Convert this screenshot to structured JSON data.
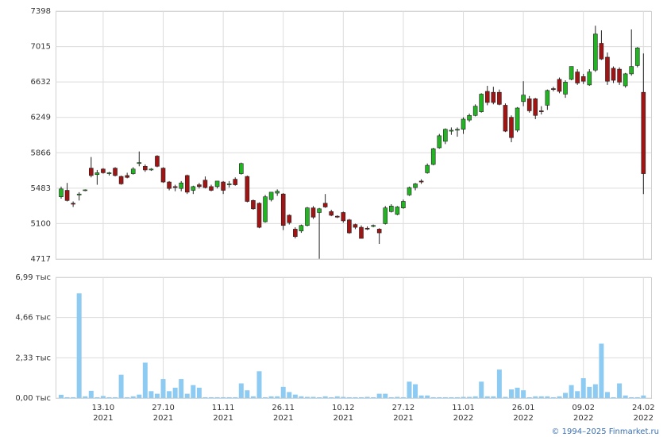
{
  "chart_data": [
    {
      "type": "candlestick",
      "up_color": "#22b422",
      "down_color": "#a01414",
      "open": [
        5390,
        5460,
        5320,
        5410,
        5460,
        5700,
        5630,
        5690,
        5640,
        5700,
        5610,
        5620,
        5640,
        5750,
        5720,
        5680,
        5830,
        5700,
        5550,
        5500,
        5480,
        5620,
        5460,
        5520,
        5570,
        5500,
        5500,
        5550,
        5520,
        5580,
        5640,
        5610,
        5350,
        5320,
        5120,
        5360,
        5430,
        5420,
        5190,
        5040,
        5020,
        5080,
        5270,
        5220,
        5320,
        5230,
        5180,
        5220,
        5140,
        5090,
        5060,
        5050,
        5070,
        5040,
        5100,
        5230,
        5200,
        5270,
        5410,
        5490,
        5560,
        5650,
        5740,
        5920,
        5990,
        6100,
        6110,
        6120,
        6220,
        6270,
        6310,
        6530,
        6520,
        6520,
        6380,
        6250,
        6110,
        6420,
        6450,
        6450,
        6320,
        6380,
        6560,
        6660,
        6500,
        6660,
        6740,
        6690,
        6600,
        6760,
        7050,
        6900,
        6780,
        6770,
        6590,
        6720,
        6810,
        6520
      ],
      "high": [
        5500,
        5540,
        5340,
        5440,
        5470,
        5820,
        5680,
        5700,
        5660,
        5710,
        5620,
        5650,
        5710,
        5880,
        5740,
        5700,
        5840,
        5710,
        5560,
        5520,
        5560,
        5630,
        5510,
        5540,
        5610,
        5520,
        5560,
        5560,
        5560,
        5600,
        5760,
        5620,
        5360,
        5330,
        5410,
        5440,
        5470,
        5430,
        5200,
        5060,
        5090,
        5280,
        5290,
        5270,
        5420,
        5250,
        5190,
        5230,
        5150,
        5100,
        5080,
        5070,
        5090,
        5050,
        5290,
        5310,
        5290,
        5360,
        5500,
        5540,
        5580,
        5750,
        5920,
        6070,
        6130,
        6140,
        6140,
        6250,
        6290,
        6390,
        6510,
        6590,
        6580,
        6550,
        6400,
        6270,
        6360,
        6640,
        6480,
        6460,
        6370,
        6550,
        6580,
        6680,
        6650,
        6800,
        6770,
        6720,
        6770,
        7240,
        7190,
        6950,
        6800,
        6790,
        6730,
        7200,
        7010,
        6940
      ],
      "low": [
        5370,
        5340,
        5280,
        5350,
        5450,
        5600,
        5520,
        5640,
        5620,
        5610,
        5520,
        5590,
        5630,
        5720,
        5660,
        5670,
        5710,
        5540,
        5460,
        5450,
        5450,
        5420,
        5420,
        5480,
        5480,
        5450,
        5480,
        5420,
        5490,
        5510,
        5630,
        5330,
        5250,
        5050,
        5110,
        5340,
        5400,
        5030,
        5090,
        4940,
        5000,
        5070,
        5150,
        4720,
        5270,
        5180,
        5160,
        5110,
        4990,
        5040,
        4940,
        5030,
        5060,
        4880,
        5090,
        5220,
        5190,
        5260,
        5400,
        5460,
        5530,
        5640,
        5730,
        5910,
        5960,
        6060,
        6040,
        6070,
        6200,
        6260,
        6300,
        6380,
        6390,
        6380,
        6090,
        5980,
        6090,
        6370,
        6300,
        6230,
        6280,
        6330,
        6530,
        6510,
        6460,
        6650,
        6600,
        6610,
        6590,
        6740,
        6870,
        6600,
        6620,
        6600,
        6570,
        6700,
        6790,
        5420
      ],
      "close": [
        5475,
        5350,
        5310,
        5420,
        5465,
        5620,
        5650,
        5650,
        5650,
        5620,
        5530,
        5600,
        5690,
        5760,
        5680,
        5690,
        5720,
        5550,
        5480,
        5490,
        5540,
        5440,
        5500,
        5500,
        5490,
        5460,
        5560,
        5460,
        5530,
        5520,
        5750,
        5340,
        5260,
        5060,
        5390,
        5440,
        5450,
        5080,
        5110,
        4960,
        5080,
        5270,
        5170,
        5260,
        5280,
        5190,
        5170,
        5130,
        5000,
        5060,
        4940,
        5040,
        5080,
        5000,
        5270,
        5290,
        5280,
        5340,
        5490,
        5530,
        5550,
        5730,
        5910,
        6050,
        6120,
        6110,
        6120,
        6230,
        6270,
        6370,
        6500,
        6410,
        6410,
        6390,
        6100,
        6030,
        6350,
        6490,
        6320,
        6270,
        6310,
        6540,
        6550,
        6530,
        6630,
        6800,
        6620,
        6640,
        6740,
        7150,
        6880,
        6640,
        6650,
        6630,
        6720,
        6800,
        7000,
        5640
      ],
      "ylim": [
        4717,
        7398
      ],
      "yticks": [
        4717,
        5100,
        5483,
        5866,
        6249,
        6632,
        7015,
        7398
      ],
      "grid": true
    },
    {
      "type": "bar",
      "color": "#8ecbf2",
      "categories": [
        null,
        null,
        null,
        null,
        null,
        null,
        null,
        "13.10",
        null,
        null,
        null,
        null,
        null,
        null,
        null,
        null,
        null,
        "27.10",
        null,
        null,
        null,
        null,
        null,
        null,
        null,
        null,
        null,
        "11.11",
        null,
        null,
        null,
        null,
        null,
        null,
        null,
        null,
        null,
        "26.11",
        null,
        null,
        null,
        null,
        null,
        null,
        null,
        null,
        null,
        "10.12",
        null,
        null,
        null,
        null,
        null,
        null,
        null,
        null,
        null,
        "27.12",
        null,
        null,
        null,
        null,
        null,
        null,
        null,
        null,
        null,
        "11.01",
        null,
        null,
        null,
        null,
        null,
        null,
        null,
        null,
        null,
        "26.01",
        null,
        null,
        null,
        null,
        null,
        null,
        null,
        null,
        null,
        "09.02",
        null,
        null,
        null,
        null,
        null,
        null,
        null,
        null,
        null,
        "24.02"
      ],
      "years": [
        null,
        null,
        null,
        null,
        null,
        null,
        null,
        "2021",
        null,
        null,
        null,
        null,
        null,
        null,
        null,
        null,
        null,
        "2021",
        null,
        null,
        null,
        null,
        null,
        null,
        null,
        null,
        null,
        "2021",
        null,
        null,
        null,
        null,
        null,
        null,
        null,
        null,
        null,
        "2021",
        null,
        null,
        null,
        null,
        null,
        null,
        null,
        null,
        null,
        "2021",
        null,
        null,
        null,
        null,
        null,
        null,
        null,
        null,
        null,
        "2021",
        null,
        null,
        null,
        null,
        null,
        null,
        null,
        null,
        null,
        "2022",
        null,
        null,
        null,
        null,
        null,
        null,
        null,
        null,
        null,
        "2022",
        null,
        null,
        null,
        null,
        null,
        null,
        null,
        null,
        null,
        "2022",
        null,
        null,
        null,
        null,
        null,
        null,
        null,
        null,
        null,
        "2022"
      ],
      "values": [
        0.19,
        0.05,
        0.05,
        6.06,
        0.1,
        0.42,
        0.05,
        0.12,
        0.05,
        0.05,
        1.35,
        0.05,
        0.1,
        0.2,
        2.05,
        0.4,
        0.25,
        1.1,
        0.4,
        0.6,
        1.1,
        0.25,
        0.75,
        0.6,
        0.05,
        0.05,
        0.05,
        0.05,
        0.05,
        0.05,
        0.85,
        0.45,
        0.1,
        1.55,
        0.05,
        0.1,
        0.1,
        0.65,
        0.35,
        0.2,
        0.1,
        0.07,
        0.07,
        0.05,
        0.1,
        0.05,
        0.1,
        0.07,
        0.05,
        0.05,
        0.05,
        0.07,
        0.05,
        0.25,
        0.25,
        0.05,
        0.07,
        0.05,
        0.95,
        0.8,
        0.15,
        0.15,
        0.05,
        0.05,
        0.05,
        0.05,
        0.05,
        0.07,
        0.07,
        0.1,
        0.95,
        0.1,
        0.1,
        1.65,
        0.07,
        0.5,
        0.6,
        0.45,
        0.05,
        0.1,
        0.1,
        0.1,
        0.05,
        0.1,
        0.3,
        0.75,
        0.4,
        1.15,
        0.65,
        0.8,
        3.15,
        0.35,
        0.05,
        0.85,
        0.15,
        0.05,
        0.05,
        0.15
      ],
      "ylim": [
        0,
        6.99
      ],
      "yticks": [
        {
          "value": 0,
          "label": "0,00 тыс"
        },
        {
          "value": 2.33,
          "label": "2,33 тыс"
        },
        {
          "value": 4.66,
          "label": "4,66 тыс"
        },
        {
          "value": 6.99,
          "label": "6,99 тыс"
        }
      ],
      "grid": true
    }
  ],
  "footer": "© 1994–2025 Finmarket.ru"
}
